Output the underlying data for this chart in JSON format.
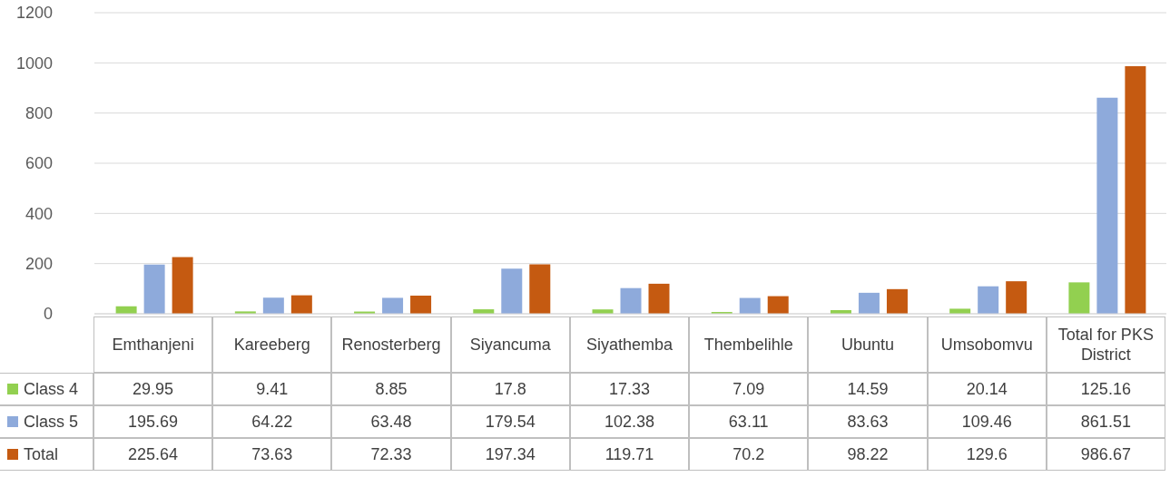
{
  "chart_data": {
    "type": "bar",
    "categories": [
      "Emthanjeni",
      "Kareeberg",
      "Renosterberg",
      "Siyancuma",
      "Siyathemba",
      "Thembelihle",
      "Ubuntu",
      "Umsobomvu",
      "Total for PKS District"
    ],
    "series": [
      {
        "name": "Class 4",
        "color": "#92d050",
        "values": [
          29.95,
          9.41,
          8.85,
          17.8,
          17.33,
          7.09,
          14.59,
          20.14,
          125.16
        ]
      },
      {
        "name": "Class 5",
        "color": "#8eaadb",
        "values": [
          195.69,
          64.22,
          63.48,
          179.54,
          102.38,
          63.11,
          83.63,
          109.46,
          861.51
        ]
      },
      {
        "name": "Total",
        "color": "#c55a11",
        "values": [
          225.64,
          73.63,
          72.33,
          197.34,
          119.71,
          70.2,
          98.22,
          129.6,
          986.67
        ]
      }
    ],
    "ylim": [
      0,
      1200
    ],
    "yticks": [
      0,
      200,
      400,
      600,
      800,
      1000,
      1200
    ],
    "grid": "y",
    "legend": "bottom",
    "data_labels": true
  }
}
